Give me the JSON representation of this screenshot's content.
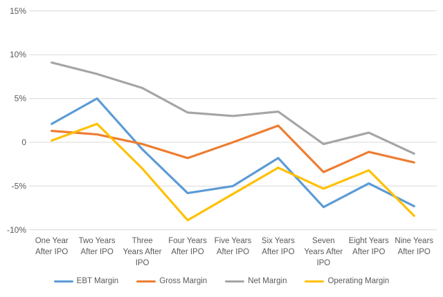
{
  "chart_data": {
    "type": "line",
    "title": "",
    "xlabel": "",
    "ylabel": "",
    "unit": "%",
    "grid": "horizontal",
    "legend_position": "bottom",
    "categories": [
      "One Year After IPO",
      "Two Years After IPO",
      "Three Years After IPO",
      "Four Years After IPO",
      "Five Years After IPO",
      "Six Years After IPO",
      "Seven Years After IPO",
      "Eight Years After IPO",
      "Nine Years After IPO"
    ],
    "category_lines": [
      [
        "One Year",
        "After IPO"
      ],
      [
        "Two Years",
        "After IPO"
      ],
      [
        "Three",
        "Years After",
        "IPO"
      ],
      [
        "Four Years",
        "After IPO"
      ],
      [
        "Five Years",
        "After IPO"
      ],
      [
        "Six Years",
        "After IPO"
      ],
      [
        "Seven",
        "Years After",
        "IPO"
      ],
      [
        "Eight Years",
        "After IPO"
      ],
      [
        "Nine Years",
        "After IPO"
      ]
    ],
    "series": [
      {
        "name": "EBT Margin",
        "color": "#5B9BD5",
        "values": [
          2.1,
          5.0,
          -0.8,
          -5.8,
          -5.0,
          -1.8,
          -7.4,
          -4.7,
          -7.3
        ]
      },
      {
        "name": "Gross Margin",
        "color": "#ED7D31",
        "values": [
          1.3,
          0.9,
          -0.2,
          -1.8,
          0.0,
          1.9,
          -3.4,
          -1.1,
          -2.3
        ]
      },
      {
        "name": "Net Margin",
        "color": "#A5A5A5",
        "values": [
          9.1,
          7.8,
          6.2,
          3.4,
          3.0,
          3.5,
          -0.2,
          1.1,
          -1.3
        ]
      },
      {
        "name": "Operating Margin",
        "color": "#FFC000",
        "values": [
          0.2,
          2.1,
          -3.0,
          -8.9,
          -5.9,
          -2.9,
          -5.3,
          -3.2,
          -8.4
        ]
      }
    ],
    "y_axis": {
      "min": -10,
      "max": 15,
      "step": 5,
      "ticks": [
        "15%",
        "10%",
        "5%",
        "0",
        "-5%",
        "-10%"
      ],
      "tick_values": [
        15,
        10,
        5,
        0,
        -5,
        -10
      ]
    },
    "colors": {
      "background": "#FFFFFF",
      "gridline": "#D9D9D9",
      "axis_text": "#595959"
    }
  }
}
